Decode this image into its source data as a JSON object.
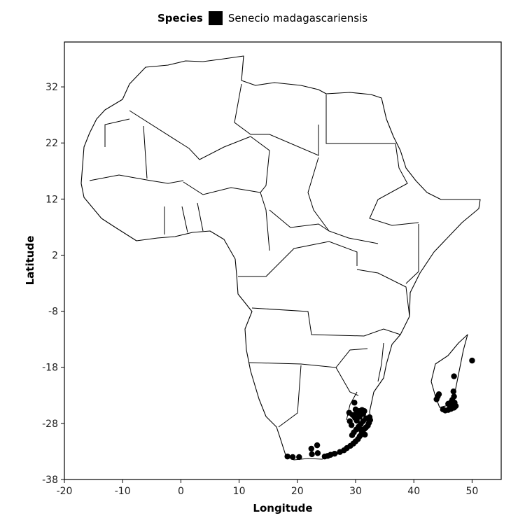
{
  "legend": {
    "title": "Species",
    "label": "Senecio madagascariensis",
    "color": "#000000"
  },
  "chart_data": {
    "type": "scatter",
    "xlabel": "Longitude",
    "ylabel": "Latitude",
    "xlim": [
      -20,
      55
    ],
    "ylim": [
      -38,
      40
    ],
    "xticks": [
      -20,
      -10,
      0,
      10,
      20,
      30,
      40,
      50
    ],
    "yticks": [
      -38,
      -28,
      -18,
      -8,
      2,
      12,
      22,
      32
    ],
    "grid": false,
    "legend_position": "top",
    "series": [
      {
        "name": "Senecio madagascariensis",
        "color": "#000000",
        "points": [
          [
            18.3,
            -33.9
          ],
          [
            19.2,
            -34.0
          ],
          [
            20.3,
            -34.0
          ],
          [
            22.5,
            -33.5
          ],
          [
            23.4,
            -31.9
          ],
          [
            22.4,
            -32.5
          ],
          [
            23.5,
            -33.3
          ],
          [
            24.7,
            -33.9
          ],
          [
            25.2,
            -33.8
          ],
          [
            25.7,
            -33.6
          ],
          [
            26.4,
            -33.4
          ],
          [
            27.3,
            -33.1
          ],
          [
            28.0,
            -32.8
          ],
          [
            28.5,
            -32.4
          ],
          [
            29.1,
            -32.0
          ],
          [
            29.6,
            -31.6
          ],
          [
            30.0,
            -31.2
          ],
          [
            30.4,
            -30.8
          ],
          [
            30.7,
            -30.3
          ],
          [
            31.0,
            -29.9
          ],
          [
            31.2,
            -29.5
          ],
          [
            31.5,
            -29.0
          ],
          [
            31.8,
            -28.7
          ],
          [
            32.1,
            -28.4
          ],
          [
            32.3,
            -27.9
          ],
          [
            32.5,
            -27.4
          ],
          [
            32.4,
            -26.9
          ],
          [
            31.8,
            -27.1
          ],
          [
            31.3,
            -27.6
          ],
          [
            30.9,
            -28.1
          ],
          [
            30.5,
            -28.6
          ],
          [
            30.1,
            -29.1
          ],
          [
            29.7,
            -29.6
          ],
          [
            29.4,
            -30.1
          ],
          [
            30.2,
            -27.5
          ],
          [
            29.9,
            -27.0
          ],
          [
            29.5,
            -26.5
          ],
          [
            30.2,
            -26.1
          ],
          [
            30.6,
            -25.8
          ],
          [
            31.1,
            -25.6
          ],
          [
            30.0,
            -25.5
          ],
          [
            31.3,
            -26.3
          ],
          [
            31.5,
            -25.8
          ],
          [
            30.7,
            -26.8
          ],
          [
            29.8,
            -24.3
          ],
          [
            28.9,
            -26.1
          ],
          [
            29.3,
            -28.3
          ],
          [
            29.0,
            -27.6
          ],
          [
            31.6,
            -30.0
          ],
          [
            30.9,
            -29.1
          ],
          [
            44.1,
            -23.2
          ],
          [
            43.9,
            -23.7
          ],
          [
            44.3,
            -22.8
          ],
          [
            45.0,
            -25.5
          ],
          [
            45.4,
            -25.7
          ],
          [
            45.9,
            -25.6
          ],
          [
            46.4,
            -25.4
          ],
          [
            46.9,
            -25.2
          ],
          [
            47.2,
            -24.9
          ],
          [
            46.7,
            -24.7
          ],
          [
            46.2,
            -24.9
          ],
          [
            47.0,
            -24.3
          ],
          [
            46.6,
            -23.8
          ],
          [
            46.9,
            -23.2
          ],
          [
            46.4,
            -24.2
          ],
          [
            46.8,
            -22.3
          ],
          [
            46.9,
            -19.6
          ],
          [
            50.0,
            -16.8
          ],
          [
            45.9,
            -24.5
          ]
        ]
      }
    ]
  }
}
